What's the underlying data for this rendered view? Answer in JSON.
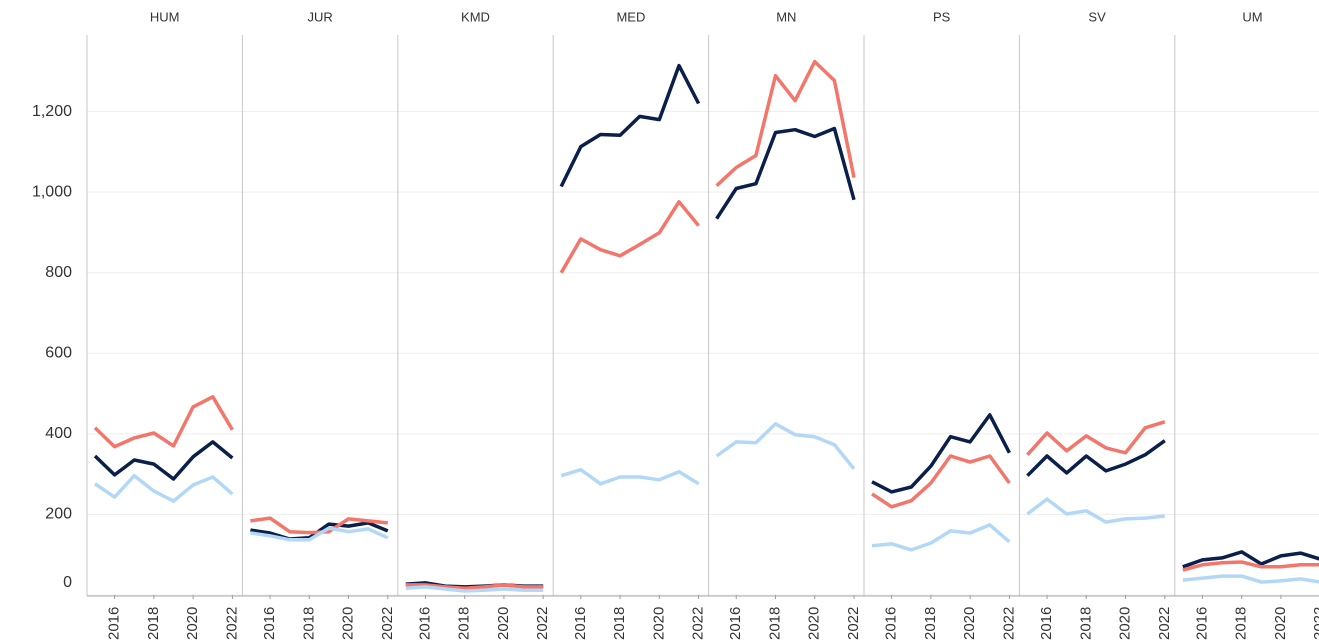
{
  "chart_data": {
    "type": "line",
    "x": [
      2015,
      2016,
      2017,
      2018,
      2019,
      2020,
      2021,
      2022
    ],
    "xticks": [
      2016,
      2018,
      2020,
      2022
    ],
    "ylim": [
      0,
      1390
    ],
    "yticks": [
      0,
      200,
      400,
      600,
      800,
      {
        "value": 1000,
        "label": "1,000"
      },
      {
        "value": 1200,
        "label": "1,200"
      }
    ],
    "grid": true,
    "panels": [
      {
        "title": "HUM",
        "series": [
          {
            "color": "#0b1f4b",
            "values": [
              345,
              298,
              335,
              325,
              288,
              343,
              380,
              340
            ]
          },
          {
            "color": "#f4756a",
            "values": [
              415,
              368,
              390,
              402,
              370,
              467,
              492,
              410
            ]
          },
          {
            "color": "#b3d8f7",
            "values": [
              276,
              243,
              296,
              258,
              233,
              273,
              293,
              251
            ]
          }
        ]
      },
      {
        "title": "JUR",
        "series": [
          {
            "color": "#0b1f4b",
            "values": [
              161,
              154,
              139,
              142,
              176,
              171,
              179,
              159
            ]
          },
          {
            "color": "#f4756a",
            "values": [
              184,
              191,
              157,
              155,
              157,
              189,
              184,
              179
            ]
          },
          {
            "color": "#b3d8f7",
            "values": [
              154,
              147,
              137,
              137,
              166,
              157,
              164,
              142
            ]
          }
        ]
      },
      {
        "title": "KMD",
        "series": [
          {
            "color": "#0b1f4b",
            "values": [
              27,
              30,
              22,
              20,
              22,
              25,
              22,
              22
            ]
          },
          {
            "color": "#f4756a",
            "values": [
              25,
              25,
              20,
              17,
              20,
              25,
              20,
              20
            ]
          },
          {
            "color": "#b3d8f7",
            "values": [
              17,
              20,
              15,
              10,
              12,
              15,
              12,
              12
            ]
          }
        ]
      },
      {
        "title": "MED",
        "series": [
          {
            "color": "#0b1f4b",
            "values": [
              1014,
              1113,
              1143,
              1141,
              1188,
              1180,
              1314,
              1220
            ]
          },
          {
            "color": "#f4756a",
            "values": [
              800,
              884,
              857,
              842,
              870,
              899,
              976,
              917
            ]
          },
          {
            "color": "#b3d8f7",
            "values": [
              296,
              311,
              276,
              293,
              293,
              286,
              306,
              276
            ]
          }
        ]
      },
      {
        "title": "MN",
        "series": [
          {
            "color": "#0b1f4b",
            "values": [
              934,
              1009,
              1021,
              1148,
              1155,
              1138,
              1158,
              981
            ]
          },
          {
            "color": "#f4756a",
            "values": [
              1016,
              1061,
              1091,
              1289,
              1227,
              1324,
              1277,
              1036
            ]
          },
          {
            "color": "#b3d8f7",
            "values": [
              345,
              380,
              378,
              425,
              398,
              393,
              373,
              313
            ]
          }
        ]
      },
      {
        "title": "PS",
        "series": [
          {
            "color": "#0b1f4b",
            "values": [
              281,
              256,
              268,
              320,
              393,
              380,
              447,
              353
            ]
          },
          {
            "color": "#f4756a",
            "values": [
              251,
              219,
              234,
              278,
              345,
              330,
              345,
              278
            ]
          },
          {
            "color": "#b3d8f7",
            "values": [
              122,
              127,
              112,
              129,
              159,
              154,
              174,
              132
            ]
          }
        ]
      },
      {
        "title": "SV",
        "series": [
          {
            "color": "#0b1f4b",
            "values": [
              296,
              345,
              303,
              345,
              308,
              325,
              348,
              383
            ]
          },
          {
            "color": "#f4756a",
            "values": [
              348,
              402,
              358,
              395,
              365,
              353,
              415,
              430
            ]
          },
          {
            "color": "#b3d8f7",
            "values": [
              201,
              238,
              201,
              209,
              181,
              189,
              191,
              196
            ]
          }
        ]
      },
      {
        "title": "UM",
        "series": [
          {
            "color": "#0b1f4b",
            "values": [
              70,
              87,
              92,
              107,
              77,
              97,
              104,
              89
            ]
          },
          {
            "color": "#f4756a",
            "values": [
              62,
              75,
              80,
              82,
              70,
              70,
              75,
              75
            ]
          },
          {
            "color": "#b3d8f7",
            "values": [
              37,
              42,
              47,
              47,
              32,
              35,
              40,
              32
            ]
          }
        ]
      }
    ]
  }
}
